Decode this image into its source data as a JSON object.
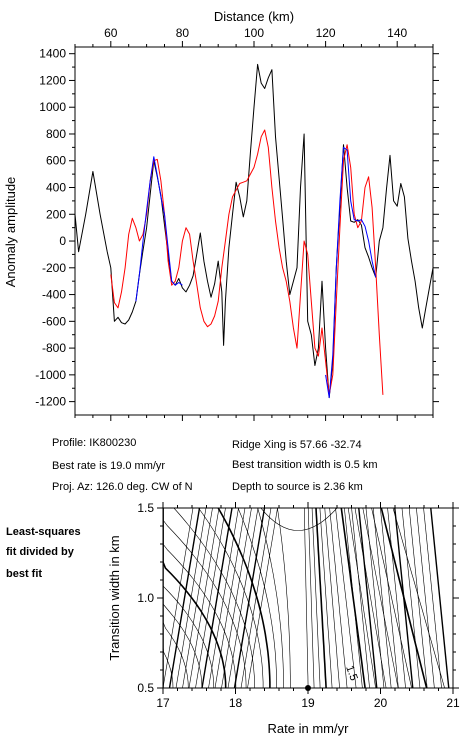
{
  "chart_data": [
    {
      "type": "line",
      "xlabel": "Distance (km)",
      "ylabel": "Anomaly amplitude",
      "xlim": [
        50,
        150
      ],
      "ylim": [
        -1300,
        1450
      ],
      "x_ticks": [
        60,
        80,
        100,
        120,
        140
      ],
      "y_ticks": [
        -1200,
        -1000,
        -800,
        -600,
        -400,
        -200,
        0,
        200,
        400,
        600,
        800,
        1000,
        1200,
        1400
      ],
      "x_axis_position": "top",
      "grid": false,
      "series": [
        {
          "color": "#000000",
          "points": [
            [
              50,
              200
            ],
            [
              51,
              -80
            ],
            [
              53,
              200
            ],
            [
              55,
              520
            ],
            [
              57,
              200
            ],
            [
              59,
              -80
            ],
            [
              60,
              -200
            ],
            [
              61,
              -600
            ],
            [
              62,
              -570
            ],
            [
              63,
              -610
            ],
            [
              64,
              -620
            ],
            [
              65,
              -590
            ],
            [
              66,
              -530
            ],
            [
              67,
              -450
            ],
            [
              68,
              -250
            ],
            [
              69,
              -70
            ],
            [
              70,
              100
            ],
            [
              71,
              350
            ],
            [
              72,
              600
            ],
            [
              73,
              480
            ],
            [
              74,
              340
            ],
            [
              75,
              120
            ],
            [
              76,
              -100
            ],
            [
              77,
              -300
            ],
            [
              78,
              -330
            ],
            [
              79,
              -280
            ],
            [
              80,
              -350
            ],
            [
              81,
              -380
            ],
            [
              82,
              -330
            ],
            [
              83,
              -260
            ],
            [
              84,
              -100
            ],
            [
              85,
              60
            ],
            [
              86,
              -150
            ],
            [
              87,
              -300
            ],
            [
              88,
              -420
            ],
            [
              89,
              -320
            ],
            [
              90,
              -150
            ],
            [
              91,
              -380
            ],
            [
              91.5,
              -780
            ],
            [
              92,
              -450
            ],
            [
              93,
              -50
            ],
            [
              94,
              200
            ],
            [
              95,
              440
            ],
            [
              96,
              330
            ],
            [
              97,
              180
            ],
            [
              98,
              300
            ],
            [
              99,
              660
            ],
            [
              100,
              1000
            ],
            [
              101,
              1320
            ],
            [
              102,
              1180
            ],
            [
              103,
              1140
            ],
            [
              104,
              1220
            ],
            [
              105,
              1280
            ],
            [
              106,
              780
            ],
            [
              107,
              470
            ],
            [
              108,
              170
            ],
            [
              109,
              -150
            ],
            [
              110,
              -400
            ],
            [
              111,
              -300
            ],
            [
              112,
              -200
            ],
            [
              113,
              400
            ],
            [
              114,
              800
            ],
            [
              115,
              -600
            ],
            [
              116,
              -700
            ],
            [
              117,
              -930
            ],
            [
              118,
              -800
            ],
            [
              119,
              -300
            ],
            [
              120,
              -800
            ],
            [
              121,
              -1170
            ],
            [
              122,
              -900
            ],
            [
              123,
              -200
            ],
            [
              124,
              250
            ],
            [
              125,
              720
            ],
            [
              126,
              400
            ],
            [
              127,
              150
            ],
            [
              128,
              140
            ],
            [
              129,
              160
            ],
            [
              130,
              120
            ],
            [
              131,
              -50
            ],
            [
              132,
              -120
            ],
            [
              133,
              -200
            ],
            [
              134,
              -270
            ],
            [
              135,
              0
            ],
            [
              136,
              100
            ],
            [
              137,
              390
            ],
            [
              138,
              640
            ],
            [
              139,
              300
            ],
            [
              140,
              260
            ],
            [
              141,
              430
            ],
            [
              142,
              330
            ],
            [
              143,
              20
            ],
            [
              144,
              -150
            ],
            [
              145,
              -300
            ],
            [
              146,
              -500
            ],
            [
              147,
              -650
            ],
            [
              148,
              -500
            ],
            [
              149,
              -350
            ],
            [
              150,
              -200
            ]
          ]
        },
        {
          "color": "#ff0000",
          "points": [
            [
              60,
              -250
            ],
            [
              61,
              -460
            ],
            [
              62,
              -500
            ],
            [
              63,
              -380
            ],
            [
              64,
              -200
            ],
            [
              65,
              50
            ],
            [
              66,
              170
            ],
            [
              67,
              100
            ],
            [
              68,
              0
            ],
            [
              69,
              50
            ],
            [
              70,
              200
            ],
            [
              71,
              450
            ],
            [
              72,
              600
            ],
            [
              73,
              610
            ],
            [
              74,
              450
            ],
            [
              75,
              200
            ],
            [
              76,
              -150
            ],
            [
              77,
              -330
            ],
            [
              78,
              -300
            ],
            [
              79,
              -200
            ],
            [
              80,
              0
            ],
            [
              81,
              100
            ],
            [
              82,
              50
            ],
            [
              83,
              -150
            ],
            [
              84,
              -320
            ],
            [
              85,
              -500
            ],
            [
              86,
              -600
            ],
            [
              87,
              -640
            ],
            [
              88,
              -620
            ],
            [
              89,
              -560
            ],
            [
              90,
              -450
            ],
            [
              91,
              -200
            ],
            [
              92,
              0
            ],
            [
              93,
              200
            ],
            [
              94,
              330
            ],
            [
              95,
              380
            ],
            [
              96,
              430
            ],
            [
              97,
              440
            ],
            [
              98,
              450
            ],
            [
              99,
              500
            ],
            [
              100,
              550
            ],
            [
              101,
              650
            ],
            [
              102,
              780
            ],
            [
              103,
              830
            ],
            [
              104,
              700
            ],
            [
              105,
              400
            ],
            [
              106,
              150
            ],
            [
              107,
              -50
            ],
            [
              108,
              -200
            ],
            [
              109,
              -300
            ],
            [
              110,
              -450
            ],
            [
              111,
              -650
            ],
            [
              112,
              -800
            ],
            [
              113,
              -400
            ],
            [
              114,
              0
            ],
            [
              115,
              -100
            ],
            [
              116,
              -450
            ],
            [
              117,
              -800
            ],
            [
              118,
              -860
            ],
            [
              119,
              -650
            ],
            [
              120,
              -900
            ],
            [
              121,
              -1150
            ],
            [
              122,
              -1000
            ],
            [
              123,
              -450
            ],
            [
              124,
              100
            ],
            [
              125,
              600
            ],
            [
              126,
              720
            ],
            [
              127,
              550
            ],
            [
              128,
              200
            ],
            [
              129,
              100
            ],
            [
              130,
              150
            ],
            [
              131,
              400
            ],
            [
              132,
              480
            ],
            [
              133,
              250
            ],
            [
              134,
              -200
            ],
            [
              135,
              -700
            ],
            [
              136,
              -1150
            ]
          ]
        },
        {
          "color": "#0000ff",
          "points": [
            [
              67,
              -450
            ],
            [
              68,
              -250
            ],
            [
              69,
              0
            ],
            [
              70,
              230
            ],
            [
              71,
              450
            ],
            [
              72,
              630
            ],
            [
              73,
              490
            ],
            [
              74,
              330
            ],
            [
              75,
              200
            ],
            [
              76,
              -50
            ],
            [
              77,
              -300
            ],
            [
              78,
              -330
            ],
            [
              79,
              -310
            ],
            [
              80,
              -330
            ]
          ]
        },
        {
          "color": "#0000ff",
          "points": [
            [
              120,
              -1000
            ],
            [
              121,
              -1170
            ],
            [
              122,
              -850
            ],
            [
              123,
              -200
            ],
            [
              124,
              300
            ],
            [
              125,
              700
            ],
            [
              126,
              680
            ],
            [
              127,
              300
            ],
            [
              128,
              160
            ],
            [
              129,
              150
            ],
            [
              130,
              160
            ],
            [
              131,
              110
            ],
            [
              132,
              0
            ],
            [
              133,
              -150
            ],
            [
              134,
              -270
            ]
          ]
        }
      ]
    },
    {
      "type": "contour",
      "xlabel": "Rate in mm/yr",
      "ylabel": "Transition width in km",
      "xlim": [
        17,
        21
      ],
      "ylim": [
        0.5,
        1.5
      ],
      "x_ticks": [
        17,
        18,
        19,
        20,
        21
      ],
      "y_ticks": [
        0.5,
        1.0,
        1.5
      ],
      "x_tick_labels": [
        "17",
        "18",
        "19",
        "20",
        "21"
      ],
      "y_tick_labels": [
        "0.5",
        "1.0",
        "1.5"
      ],
      "best_fit": {
        "rate": 19.0,
        "width": 0.5
      },
      "contour_label": "1.5"
    }
  ],
  "info": {
    "profile": "Profile: IK800230",
    "best_rate": "Best rate is 19.0 mm/yr",
    "proj_az": "Proj. Az: 126.0 deg. CW of N",
    "ridge_xing": "Ridge Xing is 57.66 -32.74",
    "best_width": "Best transition width is 0.5 km",
    "depth": "Depth to source is   2.36 km"
  },
  "side_note": [
    "Least-squares",
    "fit divided by",
    "best fit"
  ]
}
